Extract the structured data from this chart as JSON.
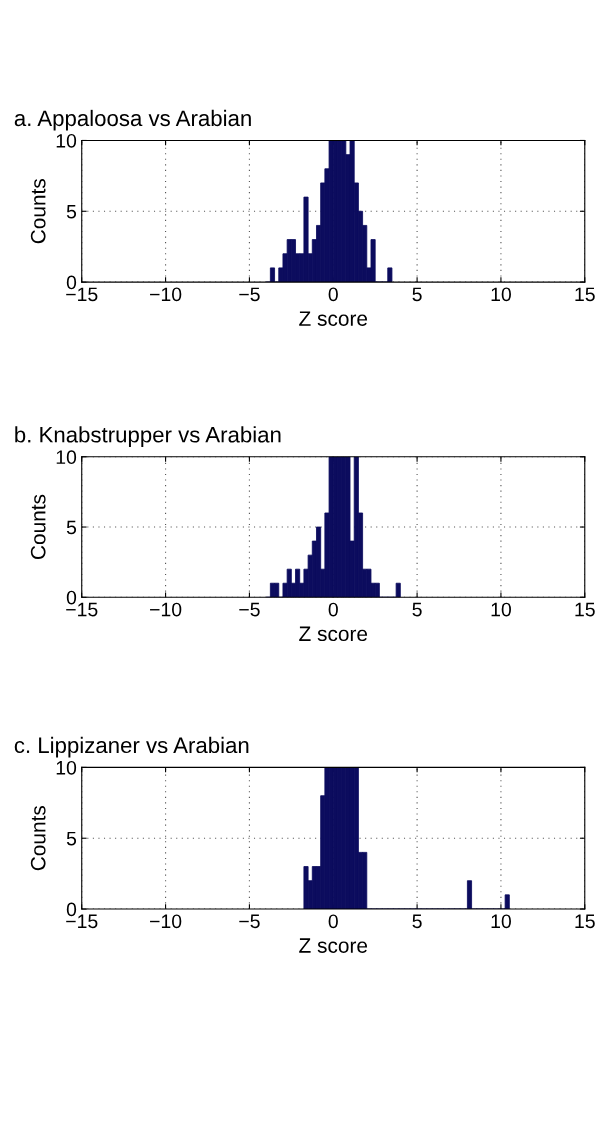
{
  "chart_data": [
    {
      "type": "histogram",
      "title": "a. Appaloosa vs Arabian",
      "xlabel": "Z score",
      "ylabel": "Counts",
      "color": "#0c0c5e",
      "xlim": [
        -15,
        15
      ],
      "ylim": [
        0,
        10
      ],
      "xticks": [
        -15,
        -10,
        -5,
        0,
        5,
        10,
        15
      ],
      "yticks": [
        0,
        5,
        10
      ],
      "grid": true,
      "bins": [
        -4.0,
        -3.75,
        -3.5,
        -3.25,
        -3.0,
        -2.75,
        -2.5,
        -2.25,
        -2.0,
        -1.75,
        -1.5,
        -1.25,
        -1.0,
        -0.75,
        -0.5,
        -0.25,
        0.0,
        0.25,
        0.5,
        0.75,
        1.0,
        1.25,
        1.5,
        1.75,
        2.0,
        2.25,
        2.5,
        2.75,
        3.0,
        3.25,
        3.5
      ],
      "values": [
        0,
        1,
        0,
        1,
        2,
        3,
        3,
        2,
        2,
        6,
        2,
        3,
        4,
        7,
        8,
        10,
        10,
        10,
        10,
        9,
        10,
        7,
        5,
        4,
        1,
        3,
        0,
        0,
        0,
        1
      ]
    },
    {
      "type": "histogram",
      "title": "b. Knabstrupper vs Arabian",
      "xlabel": "Z score",
      "ylabel": "Counts",
      "color": "#0c0c5e",
      "xlim": [
        -15,
        15
      ],
      "ylim": [
        0,
        10
      ],
      "xticks": [
        -15,
        -10,
        -5,
        0,
        5,
        10,
        15
      ],
      "yticks": [
        0,
        5,
        10
      ],
      "grid": true,
      "bins": [
        -4.0,
        -3.75,
        -3.5,
        -3.25,
        -3.0,
        -2.75,
        -2.5,
        -2.25,
        -2.0,
        -1.75,
        -1.5,
        -1.25,
        -1.0,
        -0.75,
        -0.5,
        -0.25,
        0.0,
        0.25,
        0.5,
        0.75,
        1.0,
        1.25,
        1.5,
        1.75,
        2.0,
        2.25,
        2.5,
        2.75,
        3.0,
        3.25,
        3.5,
        3.75,
        4.0
      ],
      "values": [
        0,
        1,
        1,
        0,
        1,
        2,
        1,
        2,
        1,
        2,
        3,
        4,
        5,
        2,
        6,
        10,
        10,
        10,
        10,
        10,
        4,
        10,
        6,
        2,
        2,
        1,
        1,
        0,
        0,
        0,
        0,
        1
      ]
    },
    {
      "type": "histogram",
      "title": "c. Lippizaner vs Arabian",
      "xlabel": "Z score",
      "ylabel": "Counts",
      "color": "#0c0c5e",
      "xlim": [
        -15,
        15
      ],
      "ylim": [
        0,
        10
      ],
      "xticks": [
        -15,
        -10,
        -5,
        0,
        5,
        10,
        15
      ],
      "yticks": [
        0,
        5,
        10
      ],
      "grid": true,
      "bins": [
        -1.75,
        -1.5,
        -1.25,
        -1.0,
        -0.75,
        -0.5,
        -0.25,
        0.0,
        0.25,
        0.5,
        0.75,
        1.0,
        1.25,
        1.5,
        1.75,
        2.0,
        2.25,
        2.5,
        2.75,
        3.0,
        3.25,
        3.5,
        3.75,
        4.0,
        4.25,
        4.5,
        4.75,
        5.0,
        5.25,
        5.5,
        5.75,
        6.0,
        6.25,
        6.5,
        6.75,
        7.0,
        7.25,
        7.5,
        7.75,
        8.0,
        8.25,
        8.5,
        8.75,
        9.0,
        9.25,
        9.5,
        9.75,
        10.0,
        10.25,
        10.5
      ],
      "values": [
        3,
        2,
        3,
        3,
        8,
        10,
        10,
        10,
        10,
        10,
        10,
        10,
        10,
        4,
        4,
        0,
        0,
        0,
        0,
        0,
        0,
        0,
        0,
        0,
        0,
        0,
        0,
        0,
        0,
        0,
        0,
        0,
        0,
        0,
        0,
        0,
        0,
        0,
        0,
        2,
        0,
        0,
        0,
        0,
        0,
        0,
        0,
        0,
        1
      ]
    }
  ]
}
